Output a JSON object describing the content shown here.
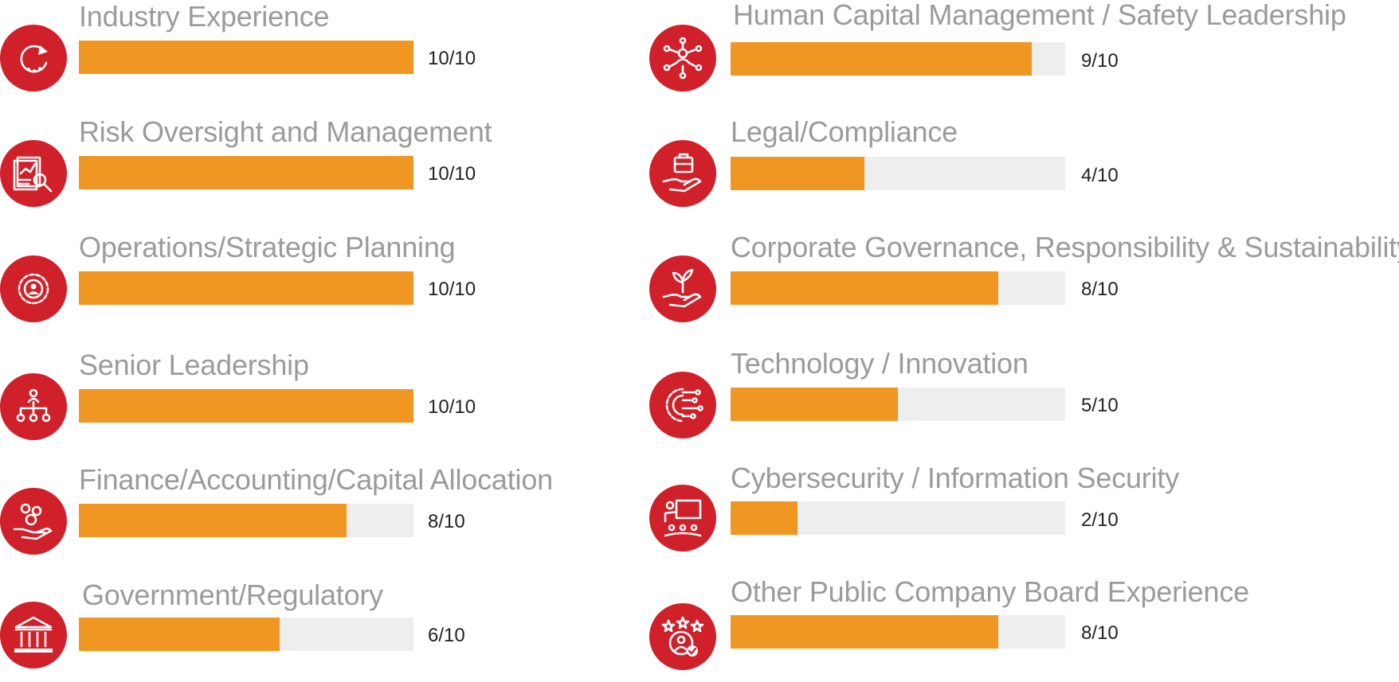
{
  "chart_data": {
    "type": "bar",
    "orientation": "horizontal",
    "max": 10,
    "accent_color": "#f09622",
    "track_color": "#eeeeee",
    "icon_color": "#d0202a",
    "items": [
      {
        "label": "Industry Experience",
        "value": 10,
        "score": "10/10",
        "icon": "refresh-icon"
      },
      {
        "label": "Risk Oversight and Management",
        "value": 10,
        "score": "10/10",
        "icon": "report-magnifier-icon"
      },
      {
        "label": "Operations/Strategic Planning",
        "value": 10,
        "score": "10/10",
        "icon": "gear-person-icon"
      },
      {
        "label": "Senior Leadership",
        "value": 10,
        "score": "10/10",
        "icon": "org-chart-icon"
      },
      {
        "label": "Finance/Accounting/Capital Allocation",
        "value": 8,
        "score": "8/10",
        "icon": "hand-coins-icon"
      },
      {
        "label": "Government/Regulatory",
        "value": 6,
        "score": "6/10",
        "icon": "government-building-icon"
      },
      {
        "label": "Human Capital Management / Safety Leadership",
        "value": 9,
        "score": "9/10",
        "icon": "people-network-icon"
      },
      {
        "label": "Legal/Compliance",
        "value": 4,
        "score": "4/10",
        "icon": "hand-briefcase-icon"
      },
      {
        "label": "Corporate Governance, Responsibility & Sustainability",
        "value": 8,
        "score": "8/10",
        "icon": "hand-plant-icon"
      },
      {
        "label": "Technology / Innovation",
        "value": 5,
        "score": "5/10",
        "icon": "gear-circuit-icon"
      },
      {
        "label": "Cybersecurity / Information Security",
        "value": 2,
        "score": "2/10",
        "icon": "presentation-icon"
      },
      {
        "label": "Other Public Company Board Experience",
        "value": 8,
        "score": "8/10",
        "icon": "stars-user-icon"
      }
    ]
  }
}
